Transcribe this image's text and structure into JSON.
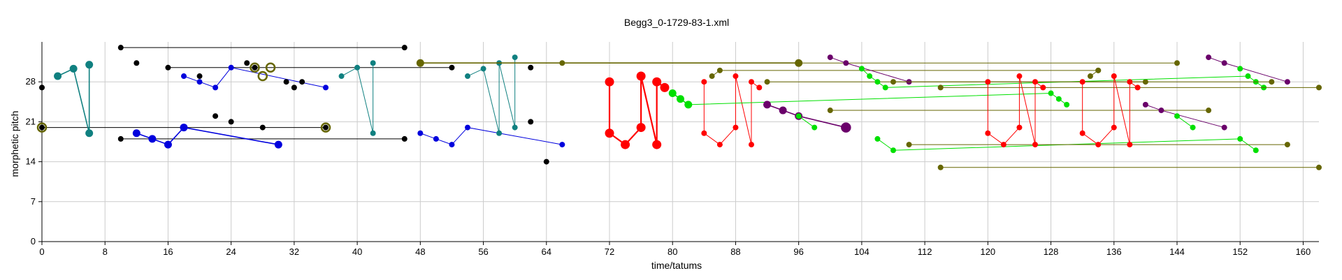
{
  "chart_data": {
    "type": "scatter",
    "title": "Begg3_0-1729-83-1.xml",
    "xlabel": "time/tatums",
    "ylabel": "morphetic pitch",
    "xlim": [
      0,
      162
    ],
    "ylim": [
      0,
      35
    ],
    "xticks": [
      0,
      8,
      16,
      24,
      32,
      40,
      48,
      56,
      64,
      72,
      80,
      88,
      96,
      104,
      112,
      120,
      128,
      136,
      144,
      152,
      160
    ],
    "yticks": [
      0,
      7,
      14,
      21,
      28
    ],
    "grid": true,
    "colors": {
      "black": "#000000",
      "blue": "#0000dd",
      "teal": "#108080",
      "olive": "#666600",
      "red": "#ff0000",
      "green": "#00e000",
      "purple": "#6a006a"
    },
    "segments": [
      {
        "color": "black",
        "size": "small",
        "points": [
          [
            10,
            34
          ],
          [
            46,
            34
          ]
        ]
      },
      {
        "color": "black",
        "size": "small",
        "points": [
          [
            16,
            30.5
          ],
          [
            52,
            30.5
          ]
        ]
      },
      {
        "color": "black",
        "size": "small",
        "points": [
          [
            0,
            20
          ],
          [
            36,
            20
          ]
        ]
      },
      {
        "color": "black",
        "size": "small",
        "points": [
          [
            10,
            18
          ],
          [
            46,
            18
          ]
        ]
      },
      {
        "color": "teal",
        "size": "medium",
        "points": [
          [
            2,
            29
          ],
          [
            4,
            30.3
          ],
          [
            6,
            19
          ],
          [
            6,
            31
          ]
        ]
      },
      {
        "color": "blue",
        "size": "medium",
        "points": [
          [
            12,
            19
          ],
          [
            14,
            18
          ],
          [
            16,
            17
          ],
          [
            18,
            20
          ],
          [
            30,
            17
          ]
        ]
      },
      {
        "color": "blue",
        "size": "small",
        "points": [
          [
            18,
            29
          ],
          [
            20,
            28
          ],
          [
            22,
            27
          ],
          [
            24,
            30.5
          ],
          [
            36,
            27
          ]
        ]
      },
      {
        "color": "teal",
        "size": "small",
        "points": [
          [
            38,
            29
          ],
          [
            40,
            30.5
          ],
          [
            42,
            19
          ],
          [
            42,
            31.3
          ]
        ]
      },
      {
        "color": "blue",
        "size": "small",
        "points": [
          [
            48,
            19
          ],
          [
            50,
            18
          ],
          [
            52,
            17
          ],
          [
            54,
            20
          ],
          [
            66,
            17
          ]
        ]
      },
      {
        "color": "teal",
        "size": "small",
        "points": [
          [
            54,
            29
          ],
          [
            56,
            30.3
          ],
          [
            58,
            19
          ],
          [
            58,
            31.3
          ],
          [
            60,
            20
          ],
          [
            60,
            32.3
          ]
        ]
      },
      {
        "color": "olive",
        "size": "medium",
        "points": [
          [
            48,
            31.3
          ],
          [
            96,
            31.3
          ]
        ]
      },
      {
        "color": "olive",
        "size": "small",
        "points": [
          [
            66,
            31.3
          ],
          [
            144,
            31.3
          ]
        ]
      },
      {
        "color": "red",
        "size": "large",
        "points": [
          [
            72,
            28
          ],
          [
            72,
            19
          ],
          [
            74,
            17
          ],
          [
            76,
            20
          ],
          [
            76,
            29
          ],
          [
            78,
            17
          ],
          [
            78,
            28
          ],
          [
            79,
            27
          ]
        ]
      },
      {
        "color": "green",
        "size": "medium",
        "points": [
          [
            80,
            26
          ],
          [
            81,
            25
          ],
          [
            82,
            24
          ]
        ]
      },
      {
        "color": "red",
        "size": "small",
        "points": [
          [
            84,
            28
          ],
          [
            84,
            19
          ],
          [
            86,
            17
          ],
          [
            88,
            20
          ],
          [
            88,
            29
          ],
          [
            90,
            17
          ],
          [
            90,
            28
          ],
          [
            91,
            27
          ]
        ]
      },
      {
        "color": "green",
        "size": "small",
        "points": [
          [
            82,
            24
          ],
          [
            128,
            26
          ],
          [
            129,
            25
          ],
          [
            130,
            24
          ]
        ]
      },
      {
        "color": "olive",
        "size": "small",
        "points": [
          [
            85,
            29
          ],
          [
            86,
            30
          ],
          [
            134,
            30
          ]
        ]
      },
      {
        "color": "olive",
        "size": "small",
        "points": [
          [
            92,
            28
          ],
          [
            140,
            28
          ]
        ]
      },
      {
        "color": "purple",
        "size": "medium",
        "points": [
          [
            92,
            24
          ],
          [
            94,
            23
          ],
          [
            96,
            22
          ],
          [
            102,
            20
          ]
        ]
      },
      {
        "color": "green",
        "size": "small",
        "points": [
          [
            96,
            22
          ],
          [
            98,
            20
          ]
        ]
      },
      {
        "color": "olive",
        "size": "small",
        "points": [
          [
            100,
            23
          ],
          [
            148,
            23
          ]
        ]
      },
      {
        "color": "purple",
        "size": "small",
        "points": [
          [
            100,
            32.3
          ],
          [
            102,
            31.3
          ],
          [
            110,
            28
          ]
        ]
      },
      {
        "color": "green",
        "size": "small",
        "points": [
          [
            104,
            30.3
          ],
          [
            105,
            29
          ],
          [
            106,
            28
          ],
          [
            107,
            27
          ],
          [
            153,
            29
          ],
          [
            154,
            28
          ],
          [
            155,
            27
          ]
        ]
      },
      {
        "color": "olive",
        "size": "small",
        "points": [
          [
            108,
            28
          ],
          [
            156,
            28
          ]
        ]
      },
      {
        "color": "olive",
        "size": "small",
        "points": [
          [
            114,
            27
          ],
          [
            162,
            27
          ]
        ]
      },
      {
        "color": "green",
        "size": "small",
        "points": [
          [
            106,
            18
          ],
          [
            108,
            16
          ],
          [
            152,
            18
          ],
          [
            154,
            16
          ]
        ]
      },
      {
        "color": "olive",
        "size": "small",
        "points": [
          [
            110,
            17
          ],
          [
            158,
            17
          ]
        ]
      },
      {
        "color": "olive",
        "size": "small",
        "points": [
          [
            114,
            13
          ],
          [
            162,
            13
          ]
        ]
      },
      {
        "color": "red",
        "size": "small",
        "points": [
          [
            120,
            28
          ],
          [
            120,
            19
          ],
          [
            122,
            17
          ],
          [
            124,
            20
          ],
          [
            124,
            29
          ],
          [
            126,
            17
          ],
          [
            126,
            28
          ],
          [
            127,
            27
          ]
        ]
      },
      {
        "color": "olive",
        "size": "small",
        "points": [
          [
            133,
            29
          ],
          [
            134,
            30
          ]
        ]
      },
      {
        "color": "red",
        "size": "small",
        "points": [
          [
            132,
            28
          ],
          [
            132,
            19
          ],
          [
            134,
            17
          ],
          [
            136,
            20
          ],
          [
            136,
            29
          ],
          [
            138,
            17
          ],
          [
            138,
            28
          ],
          [
            139,
            27
          ]
        ]
      },
      {
        "color": "purple",
        "size": "small",
        "points": [
          [
            140,
            24
          ],
          [
            142,
            23
          ],
          [
            150,
            20
          ]
        ]
      },
      {
        "color": "green",
        "size": "small",
        "points": [
          [
            144,
            22
          ],
          [
            146,
            20
          ]
        ]
      },
      {
        "color": "purple",
        "size": "small",
        "points": [
          [
            148,
            32.3
          ],
          [
            150,
            31.3
          ],
          [
            158,
            28
          ]
        ]
      },
      {
        "color": "green",
        "size": "small",
        "points": [
          [
            152,
            30.3
          ]
        ]
      }
    ],
    "markers": [
      {
        "color": "black",
        "size": "small",
        "x": 0,
        "y": 27
      },
      {
        "color": "black",
        "size": "small",
        "x": 12,
        "y": 31.3
      },
      {
        "color": "black",
        "size": "small",
        "x": 20,
        "y": 29
      },
      {
        "color": "black",
        "size": "small",
        "x": 22,
        "y": 22
      },
      {
        "color": "black",
        "size": "small",
        "x": 24,
        "y": 21
      },
      {
        "color": "black",
        "size": "small",
        "x": 26,
        "y": 31.3
      },
      {
        "color": "black",
        "size": "small",
        "x": 27,
        "y": 30.5
      },
      {
        "color": "black",
        "size": "small",
        "x": 28,
        "y": 20
      },
      {
        "color": "black",
        "size": "small",
        "x": 31,
        "y": 28
      },
      {
        "color": "black",
        "size": "small",
        "x": 32,
        "y": 27
      },
      {
        "color": "black",
        "size": "small",
        "x": 33,
        "y": 28
      },
      {
        "color": "black",
        "size": "small",
        "x": 62,
        "y": 30.5
      },
      {
        "color": "black",
        "size": "small",
        "x": 62,
        "y": 21
      },
      {
        "color": "black",
        "size": "small",
        "x": 64,
        "y": 14
      },
      {
        "color": "olive",
        "size": "medium-ring",
        "x": 27,
        "y": 30.5
      },
      {
        "color": "olive",
        "size": "medium-ring",
        "x": 28,
        "y": 29
      },
      {
        "color": "olive",
        "size": "medium-ring",
        "x": 29,
        "y": 30.5
      },
      {
        "color": "olive",
        "size": "medium-ring",
        "x": 0,
        "y": 20
      },
      {
        "color": "olive",
        "size": "medium-ring",
        "x": 36,
        "y": 20
      },
      {
        "color": "purple",
        "size": "medium-ring",
        "x": 102,
        "y": 20
      }
    ]
  }
}
